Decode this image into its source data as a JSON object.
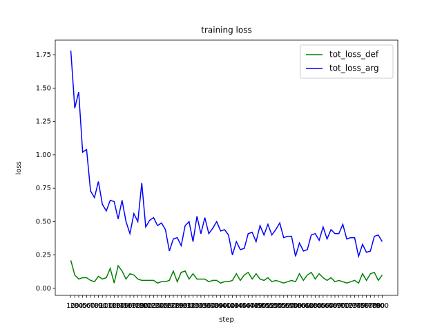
{
  "chart_data": {
    "type": "line",
    "title": "training loss",
    "x_label": "step",
    "y_label": "loss",
    "categories": [
      "10",
      "20",
      "30",
      "40",
      "50",
      "60",
      "70",
      "80",
      "90",
      "100",
      "110",
      "120",
      "130",
      "140",
      "150",
      "160",
      "170",
      "180",
      "190",
      "200",
      "210",
      "220",
      "230",
      "240",
      "250",
      "260",
      "270",
      "280",
      "290",
      "300",
      "310",
      "320",
      "330",
      "340",
      "350",
      "360",
      "370",
      "380",
      "390",
      "400",
      "410",
      "420",
      "430",
      "440",
      "450",
      "460",
      "470",
      "480",
      "490",
      "500",
      "510",
      "520",
      "530",
      "540",
      "550",
      "560",
      "570",
      "580",
      "590",
      "600",
      "610",
      "620",
      "630",
      "640",
      "650",
      "660",
      "670",
      "680",
      "690",
      "700",
      "710",
      "720",
      "730",
      "740",
      "750",
      "760",
      "770",
      "780",
      "790",
      "800"
    ],
    "series": [
      {
        "name": "tot_loss_def",
        "color": "#008000",
        "values": [
          0.21,
          0.1,
          0.07,
          0.08,
          0.08,
          0.06,
          0.05,
          0.09,
          0.07,
          0.08,
          0.15,
          0.04,
          0.17,
          0.13,
          0.07,
          0.11,
          0.1,
          0.07,
          0.06,
          0.06,
          0.06,
          0.06,
          0.04,
          0.05,
          0.05,
          0.06,
          0.13,
          0.05,
          0.12,
          0.13,
          0.07,
          0.11,
          0.07,
          0.07,
          0.07,
          0.05,
          0.06,
          0.06,
          0.04,
          0.05,
          0.05,
          0.06,
          0.11,
          0.06,
          0.1,
          0.12,
          0.07,
          0.11,
          0.07,
          0.06,
          0.08,
          0.05,
          0.06,
          0.05,
          0.04,
          0.05,
          0.06,
          0.05,
          0.11,
          0.06,
          0.1,
          0.12,
          0.07,
          0.11,
          0.08,
          0.06,
          0.08,
          0.05,
          0.06,
          0.05,
          0.04,
          0.05,
          0.06,
          0.04,
          0.11,
          0.06,
          0.11,
          0.12,
          0.06,
          0.1
        ]
      },
      {
        "name": "tot_loss_arg",
        "color": "#0000ff",
        "values": [
          1.78,
          1.35,
          1.47,
          1.02,
          1.04,
          0.73,
          0.68,
          0.8,
          0.63,
          0.58,
          0.66,
          0.65,
          0.52,
          0.66,
          0.5,
          0.41,
          0.56,
          0.5,
          0.79,
          0.46,
          0.51,
          0.53,
          0.47,
          0.49,
          0.44,
          0.28,
          0.37,
          0.38,
          0.32,
          0.47,
          0.5,
          0.35,
          0.54,
          0.41,
          0.53,
          0.41,
          0.45,
          0.5,
          0.43,
          0.44,
          0.4,
          0.25,
          0.35,
          0.29,
          0.3,
          0.41,
          0.42,
          0.35,
          0.47,
          0.4,
          0.48,
          0.4,
          0.44,
          0.49,
          0.38,
          0.39,
          0.39,
          0.24,
          0.34,
          0.28,
          0.29,
          0.4,
          0.41,
          0.36,
          0.46,
          0.37,
          0.44,
          0.41,
          0.41,
          0.48,
          0.37,
          0.38,
          0.38,
          0.24,
          0.33,
          0.27,
          0.28,
          0.39,
          0.4,
          0.35
        ]
      }
    ],
    "ylim": [
      -0.052,
      1.859
    ],
    "yticks": [
      {
        "value": 0,
        "label": "0.00"
      },
      {
        "value": 0.25,
        "label": "0.25"
      },
      {
        "value": 0.5,
        "label": "0.50"
      },
      {
        "value": 0.75,
        "label": "0.75"
      },
      {
        "value": 1,
        "label": "1.00"
      },
      {
        "value": 1.25,
        "label": "1.25"
      },
      {
        "value": 1.5,
        "label": "1.50"
      },
      {
        "value": 1.75,
        "label": "1.75"
      }
    ],
    "legend": "upper right"
  }
}
